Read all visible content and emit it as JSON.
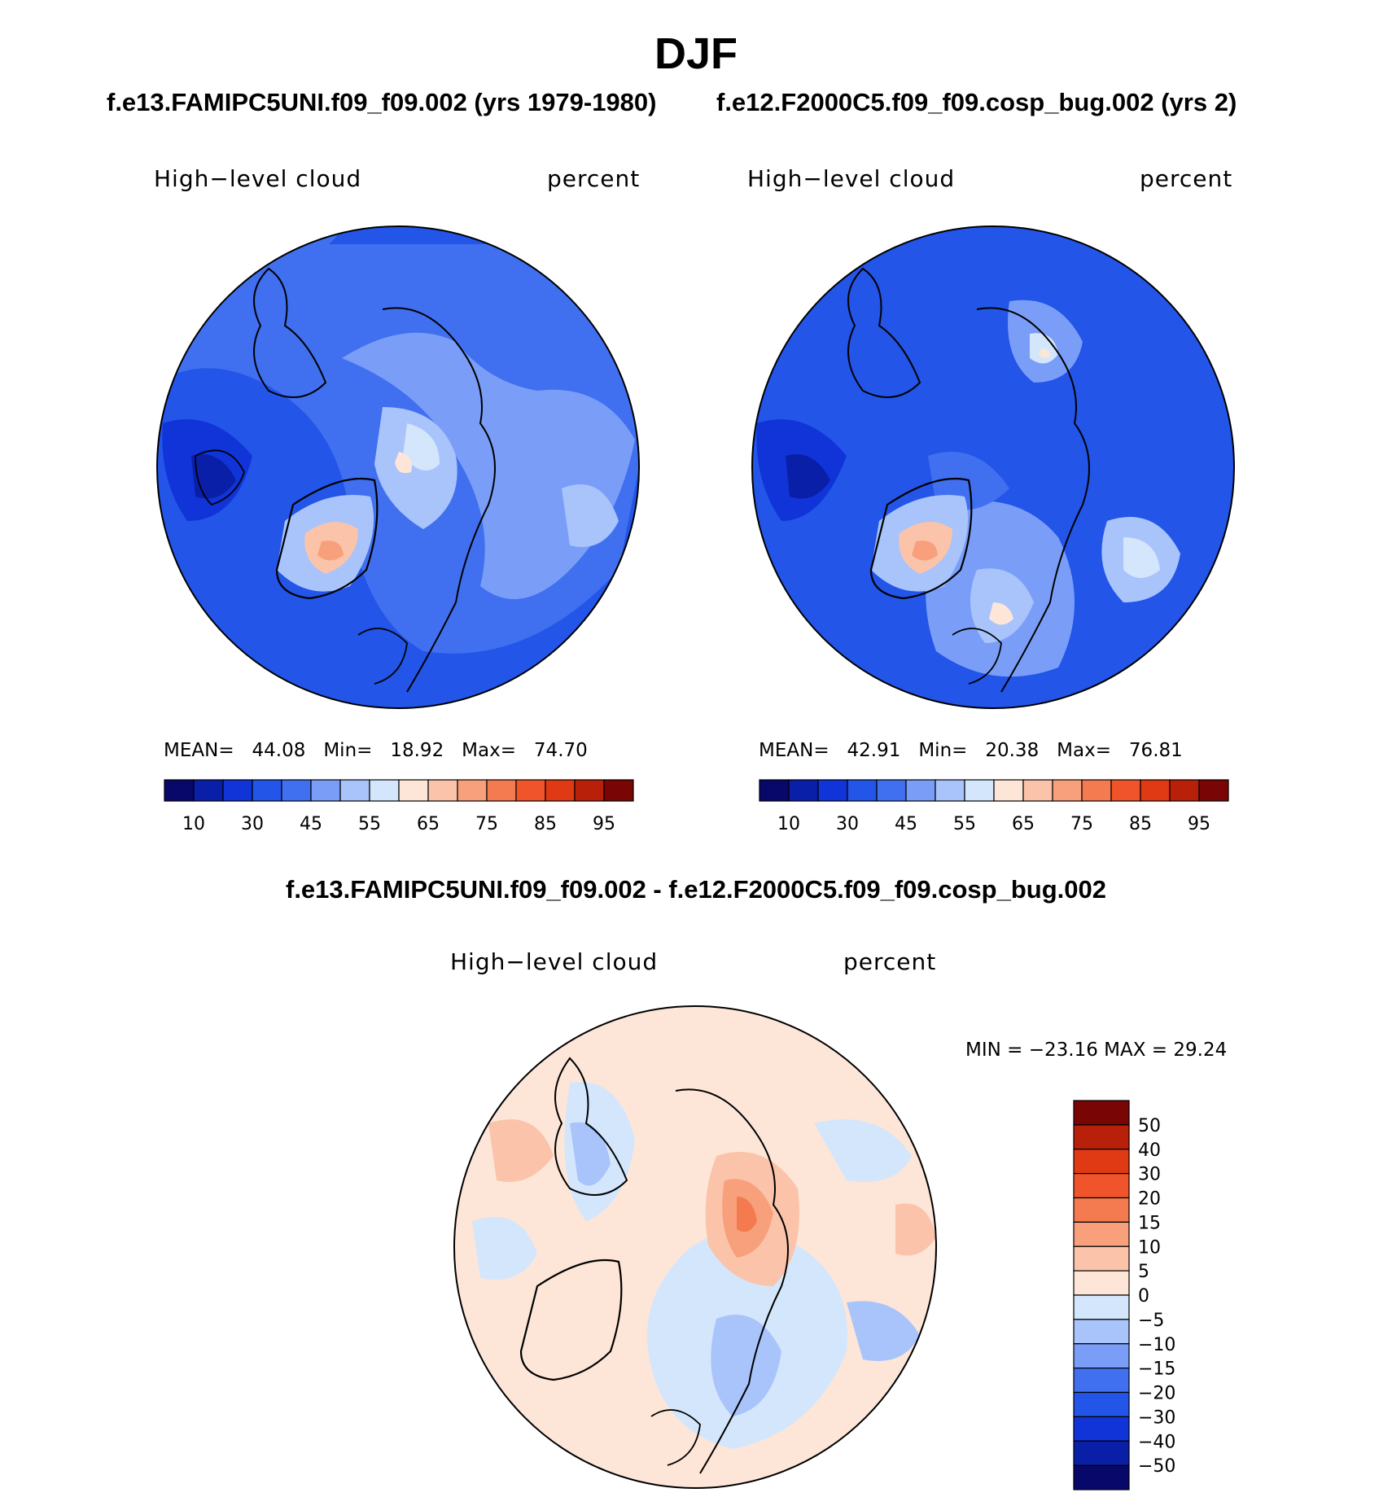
{
  "title": "DJF",
  "left_case": "f.e13.FAMIPC5UNI.f09_f09.002 (yrs 1979-1980)",
  "right_case": "f.e12.F2000C5.f09_f09.cosp_bug.002 (yrs 2)",
  "diff_case": "f.e13.FAMIPC5UNI.f09_f09.002 - f.e12.F2000C5.f09_f09.cosp_bug.002",
  "colors": {
    "abs_scale": [
      "#08086b",
      "#0a1fa8",
      "#1034d8",
      "#2255e8",
      "#4070f0",
      "#7a9ef8",
      "#a8c4fb",
      "#d4e6fc",
      "#fde6d8",
      "#fbc4aa",
      "#f8a07c",
      "#f47a50",
      "#f0542a",
      "#e03a14",
      "#b8200a",
      "#7a0505"
    ],
    "diff_scale": [
      "#7a0505",
      "#b8200a",
      "#e03a14",
      "#f0542a",
      "#f47a50",
      "#f8a07c",
      "#fbc4aa",
      "#fde6d8",
      "#d4e6fc",
      "#a8c4fb",
      "#7a9ef8",
      "#4070f0",
      "#2255e8",
      "#1034d8",
      "#0a1fa8",
      "#08086b"
    ]
  },
  "panels": {
    "left": {
      "label_left": "High−level cloud",
      "label_right": "percent",
      "stats": {
        "mean_label": "MEAN=",
        "mean": "44.08",
        "min_label": "Min=",
        "min": "18.92",
        "max_label": "Max=",
        "max": "74.70"
      }
    },
    "right": {
      "label_left": "High−level cloud",
      "label_right": "percent",
      "stats": {
        "mean_label": "MEAN=",
        "mean": "42.91",
        "min_label": "Min=",
        "min": "20.38",
        "max_label": "Max=",
        "max": "76.81"
      }
    },
    "diff": {
      "label_left": "High−level cloud",
      "label_right": "percent",
      "minmax": "MIN = −23.16 MAX =   29.24"
    }
  },
  "chart_data": [
    {
      "type": "heatmap",
      "projection": "north polar stereographic",
      "variable": "High-level cloud",
      "units": "percent",
      "case": "f.e13.FAMIPC5UNI.f09_f09.002 (yrs 1979-1980)",
      "mean": 44.08,
      "min": 18.92,
      "max": 74.7,
      "colorbar_levels": [
        5,
        10,
        20,
        30,
        40,
        45,
        50,
        55,
        60,
        65,
        70,
        75,
        80,
        85,
        90,
        95
      ],
      "colorbar_tick_labels": [
        "10",
        "30",
        "45",
        "55",
        "65",
        "75",
        "85",
        "95"
      ]
    },
    {
      "type": "heatmap",
      "projection": "north polar stereographic",
      "variable": "High-level cloud",
      "units": "percent",
      "case": "f.e12.F2000C5.f09_f09.cosp_bug.002 (yrs 2)",
      "mean": 42.91,
      "min": 20.38,
      "max": 76.81,
      "colorbar_levels": [
        5,
        10,
        20,
        30,
        40,
        45,
        50,
        55,
        60,
        65,
        70,
        75,
        80,
        85,
        90,
        95
      ],
      "colorbar_tick_labels": [
        "10",
        "30",
        "45",
        "55",
        "65",
        "75",
        "85",
        "95"
      ]
    },
    {
      "type": "heatmap",
      "projection": "north polar stereographic",
      "variable": "High-level cloud",
      "units": "percent",
      "case": "f.e13.FAMIPC5UNI.f09_f09.002 - f.e12.F2000C5.f09_f09.cosp_bug.002",
      "min": -23.16,
      "max": 29.24,
      "colorbar_tick_labels": [
        "50",
        "40",
        "30",
        "20",
        "15",
        "10",
        "5",
        "0",
        "−5",
        "−10",
        "−15",
        "−20",
        "−30",
        "−40",
        "−50"
      ]
    }
  ]
}
